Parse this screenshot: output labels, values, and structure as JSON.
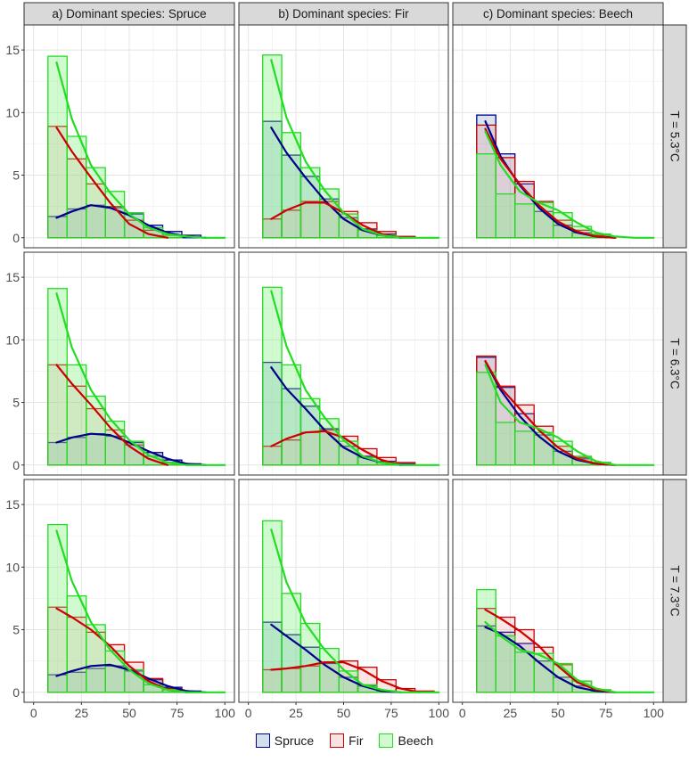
{
  "chart_data": {
    "type": "bar",
    "layout": "facet-grid",
    "column_labels": [
      "a) Dominant species: Spruce",
      "b) Dominant species: Fir",
      "c) Dominant species: Beech"
    ],
    "row_labels": [
      "T = 5.3°C",
      "T = 6.3°C",
      "T = 7.3°C"
    ],
    "xlim": [
      -5,
      105
    ],
    "ylim": [
      -0.8,
      17
    ],
    "x_ticks": [
      0,
      25,
      50,
      75,
      100
    ],
    "y_ticks": [
      0,
      5,
      10,
      15
    ],
    "x_tick_labels": [
      "0",
      "25",
      "50",
      "75",
      "100"
    ],
    "y_tick_labels": [
      "0",
      "5",
      "10",
      "15"
    ],
    "bin_centers": [
      12.5,
      22.5,
      32.5,
      42.5,
      52.5,
      62.5,
      72.5,
      82.5,
      92.5
    ],
    "bin_width": 10,
    "colors": {
      "Spruce": {
        "line": "#00008b",
        "fill": "#4a7fb8"
      },
      "Fir": {
        "line": "#cc0000",
        "fill": "#f08a8a"
      },
      "Beech": {
        "line": "#22dd22",
        "fill": "#7cf07c"
      }
    },
    "legend": [
      "Spruce",
      "Fir",
      "Beech"
    ],
    "grid": true,
    "legend_position": "bottom",
    "panels": [
      {
        "row": 0,
        "col": 0,
        "series": [
          {
            "name": "Spruce",
            "bars": [
              1.7,
              2.3,
              2.6,
              2.4,
              1.9,
              1.0,
              0.5,
              0.2,
              0
            ],
            "curve_x": [
              12,
              20,
              30,
              40,
              50,
              60,
              70,
              80,
              90
            ],
            "curve_y": [
              1.6,
              2.1,
              2.6,
              2.4,
              1.8,
              1.0,
              0.4,
              0.1,
              0
            ]
          },
          {
            "name": "Fir",
            "bars": [
              8.9,
              6.3,
              4.3,
              2.5,
              1.4,
              0.6,
              0.2,
              0,
              0
            ],
            "curve_x": [
              12,
              20,
              30,
              40,
              50,
              60,
              70
            ],
            "curve_y": [
              8.8,
              6.9,
              4.8,
              2.8,
              1.1,
              0.3,
              0
            ]
          },
          {
            "name": "Beech",
            "bars": [
              14.5,
              8.1,
              5.6,
              3.7,
              2.0,
              0.8,
              0.2,
              0,
              0
            ],
            "curve_x": [
              12,
              20,
              30,
              40,
              50,
              60,
              70,
              80,
              90,
              100
            ],
            "curve_y": [
              14.0,
              9.5,
              5.8,
              3.6,
              1.9,
              0.8,
              0.3,
              0.1,
              0,
              0
            ]
          }
        ]
      },
      {
        "row": 0,
        "col": 1,
        "series": [
          {
            "name": "Spruce",
            "bars": [
              9.3,
              6.6,
              4.9,
              3.1,
              1.6,
              0.7,
              0.3,
              0.1,
              0
            ],
            "curve_x": [
              12,
              20,
              30,
              40,
              50,
              60,
              70,
              80
            ],
            "curve_y": [
              8.8,
              6.8,
              4.8,
              3.0,
              1.5,
              0.6,
              0.2,
              0
            ]
          },
          {
            "name": "Fir",
            "bars": [
              1.5,
              2.2,
              2.9,
              2.9,
              2.1,
              1.2,
              0.5,
              0.1,
              0
            ],
            "curve_x": [
              12,
              20,
              30,
              40,
              50,
              60,
              70,
              80
            ],
            "curve_y": [
              1.5,
              2.2,
              2.8,
              2.8,
              2.0,
              1.0,
              0.3,
              0
            ]
          },
          {
            "name": "Beech",
            "bars": [
              14.6,
              8.4,
              5.6,
              3.9,
              1.9,
              0.6,
              0.2,
              0,
              0
            ],
            "curve_x": [
              12,
              20,
              30,
              40,
              50,
              60,
              70,
              80,
              90,
              100
            ],
            "curve_y": [
              14.2,
              9.6,
              6.1,
              3.8,
              2.0,
              0.7,
              0.2,
              0,
              0,
              0
            ]
          }
        ]
      },
      {
        "row": 0,
        "col": 2,
        "series": [
          {
            "name": "Spruce",
            "bars": [
              9.8,
              6.7,
              4.3,
              2.1,
              1.0,
              0.4,
              0.1,
              0,
              0
            ],
            "curve_x": [
              12,
              20,
              30,
              40,
              50,
              60,
              70,
              80
            ],
            "curve_y": [
              9.3,
              6.5,
              4.2,
              2.4,
              1.1,
              0.4,
              0.1,
              0
            ]
          },
          {
            "name": "Fir",
            "bars": [
              9.0,
              6.4,
              4.5,
              2.9,
              1.4,
              0.6,
              0.2,
              0,
              0
            ],
            "curve_x": [
              12,
              20,
              30,
              40,
              50,
              60,
              70,
              80
            ],
            "curve_y": [
              8.7,
              6.3,
              4.3,
              2.6,
              1.3,
              0.5,
              0.1,
              0
            ]
          },
          {
            "name": "Beech",
            "bars": [
              6.7,
              3.5,
              2.7,
              2.8,
              2.0,
              0.9,
              0.3,
              0,
              0
            ],
            "curve_x": [
              12,
              20,
              30,
              40,
              50,
              60,
              70,
              80,
              90,
              100
            ],
            "curve_y": [
              8.5,
              5.8,
              3.7,
              2.8,
              2.2,
              1.2,
              0.4,
              0.1,
              0,
              0
            ]
          }
        ]
      },
      {
        "row": 1,
        "col": 0,
        "series": [
          {
            "name": "Spruce",
            "bars": [
              1.8,
              2.2,
              2.5,
              2.3,
              1.8,
              1.0,
              0.4,
              0.1,
              0
            ],
            "curve_x": [
              12,
              20,
              30,
              40,
              50,
              60,
              70,
              80,
              90
            ],
            "curve_y": [
              1.8,
              2.2,
              2.5,
              2.4,
              1.8,
              1.1,
              0.5,
              0.1,
              0
            ]
          },
          {
            "name": "Fir",
            "bars": [
              8.0,
              6.3,
              4.5,
              2.8,
              1.6,
              0.7,
              0.2,
              0,
              0
            ],
            "curve_x": [
              12,
              20,
              30,
              40,
              50,
              60,
              70
            ],
            "curve_y": [
              8.0,
              6.5,
              4.8,
              3.0,
              1.5,
              0.5,
              0
            ]
          },
          {
            "name": "Beech",
            "bars": [
              14.1,
              8.0,
              5.5,
              3.5,
              1.9,
              0.7,
              0.2,
              0,
              0
            ],
            "curve_x": [
              12,
              20,
              30,
              40,
              50,
              60,
              70,
              80,
              90,
              100
            ],
            "curve_y": [
              13.7,
              9.4,
              6.0,
              3.7,
              2.0,
              0.8,
              0.2,
              0,
              0,
              0
            ]
          }
        ]
      },
      {
        "row": 1,
        "col": 1,
        "series": [
          {
            "name": "Spruce",
            "bars": [
              8.2,
              6.1,
              4.7,
              2.9,
              1.5,
              0.7,
              0.3,
              0.1,
              0
            ],
            "curve_x": [
              12,
              20,
              30,
              40,
              50,
              60,
              70,
              80
            ],
            "curve_y": [
              7.8,
              6.1,
              4.5,
              2.8,
              1.4,
              0.6,
              0.2,
              0
            ]
          },
          {
            "name": "Fir",
            "bars": [
              1.5,
              2.0,
              2.6,
              2.8,
              2.3,
              1.3,
              0.6,
              0.2,
              0
            ],
            "curve_x": [
              12,
              20,
              30,
              40,
              50,
              60,
              70,
              80
            ],
            "curve_y": [
              1.5,
              2.1,
              2.6,
              2.7,
              2.2,
              1.2,
              0.4,
              0
            ]
          },
          {
            "name": "Beech",
            "bars": [
              14.2,
              8.0,
              5.3,
              3.7,
              1.9,
              0.6,
              0.2,
              0,
              0
            ],
            "curve_x": [
              12,
              20,
              30,
              40,
              50,
              60,
              70,
              80,
              90,
              100
            ],
            "curve_y": [
              13.9,
              9.5,
              6.0,
              3.8,
              2.0,
              0.7,
              0.2,
              0,
              0,
              0
            ]
          }
        ]
      },
      {
        "row": 1,
        "col": 2,
        "series": [
          {
            "name": "Spruce",
            "bars": [
              8.6,
              6.2,
              4.1,
              2.4,
              1.1,
              0.5,
              0.1,
              0,
              0
            ],
            "curve_x": [
              12,
              20,
              30,
              40,
              50,
              60,
              70,
              80
            ],
            "curve_y": [
              8.3,
              6.0,
              3.9,
              2.3,
              1.1,
              0.4,
              0.1,
              0
            ]
          },
          {
            "name": "Fir",
            "bars": [
              8.7,
              6.3,
              4.8,
              3.1,
              1.5,
              0.6,
              0.2,
              0,
              0
            ],
            "curve_x": [
              12,
              20,
              30,
              40,
              50,
              60,
              70,
              80
            ],
            "curve_y": [
              8.3,
              6.2,
              4.5,
              2.8,
              1.4,
              0.5,
              0.1,
              0
            ]
          },
          {
            "name": "Beech",
            "bars": [
              7.4,
              3.4,
              2.7,
              2.6,
              1.9,
              0.7,
              0.2,
              0,
              0
            ],
            "curve_x": [
              12,
              20,
              30,
              40,
              50,
              60,
              70,
              80,
              90,
              100
            ],
            "curve_y": [
              8.0,
              5.0,
              3.4,
              2.9,
              2.2,
              1.1,
              0.3,
              0,
              0,
              0
            ]
          }
        ]
      },
      {
        "row": 2,
        "col": 0,
        "series": [
          {
            "name": "Spruce",
            "bars": [
              1.4,
              1.6,
              1.9,
              2.1,
              1.7,
              1.0,
              0.4,
              0.1,
              0
            ],
            "curve_x": [
              12,
              20,
              30,
              40,
              50,
              60,
              70,
              80,
              90
            ],
            "curve_y": [
              1.3,
              1.7,
              2.1,
              2.2,
              1.8,
              1.1,
              0.5,
              0.1,
              0
            ]
          },
          {
            "name": "Fir",
            "bars": [
              6.8,
              6.0,
              4.8,
              3.8,
              2.4,
              1.1,
              0.3,
              0,
              0
            ],
            "curve_x": [
              12,
              20,
              30,
              40,
              50,
              60,
              70,
              80
            ],
            "curve_y": [
              6.7,
              6.0,
              5.0,
              3.7,
              2.1,
              0.9,
              0.2,
              0
            ]
          },
          {
            "name": "Beech",
            "bars": [
              13.4,
              7.7,
              5.4,
              3.3,
              1.8,
              0.6,
              0.2,
              0,
              0
            ],
            "curve_x": [
              12,
              20,
              30,
              40,
              50,
              60,
              70,
              80,
              90,
              100
            ],
            "curve_y": [
              12.9,
              8.9,
              5.6,
              3.4,
              1.8,
              0.7,
              0.2,
              0,
              0,
              0
            ]
          }
        ]
      },
      {
        "row": 2,
        "col": 1,
        "series": [
          {
            "name": "Spruce",
            "bars": [
              5.6,
              4.6,
              3.6,
              2.3,
              1.2,
              0.5,
              0.1,
              0,
              0
            ],
            "curve_x": [
              12,
              20,
              30,
              40,
              50,
              60,
              70,
              80
            ],
            "curve_y": [
              5.4,
              4.5,
              3.4,
              2.2,
              1.2,
              0.5,
              0.1,
              0
            ]
          },
          {
            "name": "Fir",
            "bars": [
              1.8,
              1.9,
              2.1,
              2.4,
              2.5,
              2.0,
              1.0,
              0.3,
              0.1
            ],
            "curve_x": [
              12,
              20,
              30,
              40,
              50,
              60,
              70,
              80,
              90
            ],
            "curve_y": [
              1.8,
              1.9,
              2.1,
              2.4,
              2.4,
              1.8,
              0.9,
              0.3,
              0
            ]
          },
          {
            "name": "Beech",
            "bars": [
              13.7,
              7.9,
              5.5,
              3.5,
              1.7,
              0.6,
              0.1,
              0,
              0
            ],
            "curve_x": [
              12,
              20,
              30,
              40,
              50,
              60,
              70,
              80,
              90,
              100
            ],
            "curve_y": [
              13.0,
              8.8,
              5.5,
              3.4,
              1.8,
              0.6,
              0.2,
              0,
              0,
              0
            ]
          }
        ]
      },
      {
        "row": 2,
        "col": 2,
        "series": [
          {
            "name": "Spruce",
            "bars": [
              5.3,
              4.8,
              3.9,
              2.5,
              1.2,
              0.5,
              0.1,
              0,
              0
            ],
            "curve_x": [
              12,
              20,
              30,
              40,
              50,
              60,
              70,
              80
            ],
            "curve_y": [
              5.2,
              4.7,
              3.7,
              2.4,
              1.2,
              0.4,
              0.1,
              0
            ]
          },
          {
            "name": "Fir",
            "bars": [
              6.7,
              6.0,
              5.0,
              3.6,
              2.2,
              0.9,
              0.2,
              0,
              0
            ],
            "curve_x": [
              12,
              20,
              30,
              40,
              50,
              60,
              70,
              80
            ],
            "curve_y": [
              6.6,
              5.9,
              4.9,
              3.7,
              2.1,
              0.8,
              0.2,
              0
            ]
          },
          {
            "name": "Beech",
            "bars": [
              8.2,
              4.5,
              3.2,
              3.1,
              2.3,
              0.9,
              0.2,
              0,
              0
            ],
            "curve_x": [
              12,
              20,
              30,
              40,
              50,
              60,
              70,
              80,
              90,
              100
            ],
            "curve_y": [
              5.6,
              4.5,
              3.4,
              3.0,
              2.3,
              1.0,
              0.3,
              0,
              0,
              0
            ]
          }
        ]
      }
    ]
  }
}
